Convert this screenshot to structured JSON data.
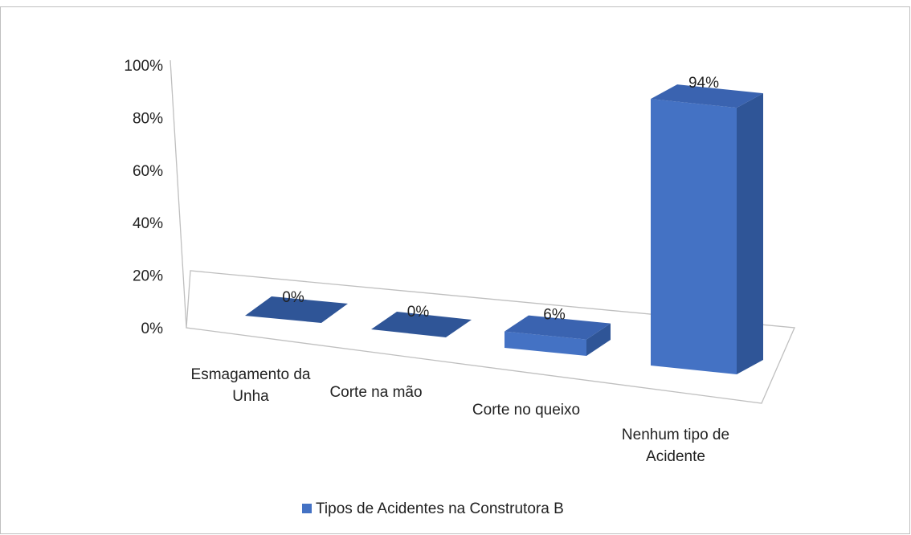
{
  "chart_data": {
    "type": "bar3d",
    "categories": [
      "Esmagamento da Unha",
      "Corte na mão",
      "Corte no queixo",
      "Nenhum tipo de Acidente"
    ],
    "series": [
      {
        "name": "Tipos de Acidentes na Construtora B",
        "color": "#4472c4",
        "values": [
          0,
          0,
          6,
          94
        ],
        "value_labels": [
          "0%",
          "0%",
          "6%",
          "94%"
        ]
      }
    ],
    "ylim": [
      0,
      100
    ],
    "yticks": [
      {
        "value": 0,
        "label": "0%"
      },
      {
        "value": 20,
        "label": "20%"
      },
      {
        "value": 40,
        "label": "40%"
      },
      {
        "value": 60,
        "label": "60%"
      },
      {
        "value": 80,
        "label": "80%"
      },
      {
        "value": 100,
        "label": "100%"
      }
    ],
    "legend": "bottom"
  }
}
